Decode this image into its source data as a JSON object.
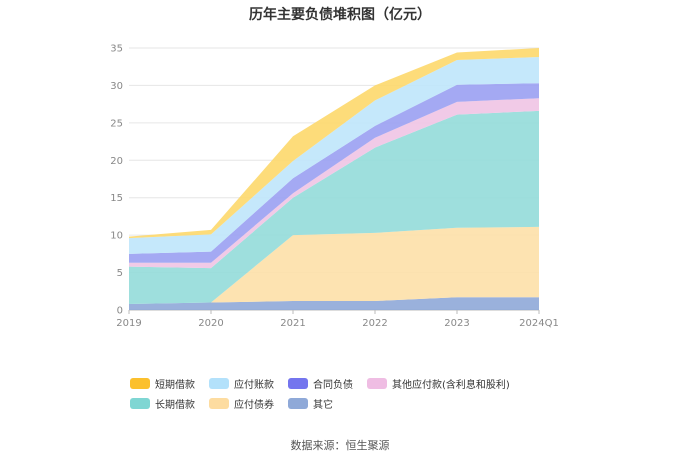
{
  "chart_data": {
    "type": "area",
    "stacked": true,
    "title": "历年主要负债堆积图（亿元）",
    "categories": [
      "2019",
      "2020",
      "2021",
      "2022",
      "2023",
      "2024Q1"
    ],
    "ylim": [
      0,
      35
    ],
    "yticks": [
      0,
      5,
      10,
      15,
      20,
      25,
      30,
      35
    ],
    "grid": true,
    "legend_position": "bottom",
    "series": [
      {
        "name": "其它",
        "color": "#8fa9d8",
        "values": [
          0.8,
          1.0,
          1.2,
          1.2,
          1.7,
          1.7
        ]
      },
      {
        "name": "应付债券",
        "color": "#fde0a8",
        "values": [
          0.0,
          0.0,
          8.8,
          9.1,
          9.3,
          9.4
        ]
      },
      {
        "name": "长期借款",
        "color": "#93dcd9",
        "values": [
          5.0,
          4.6,
          5.0,
          11.4,
          15.1,
          15.5
        ]
      },
      {
        "name": "其他应付款(含利息和股利)",
        "color": "#efc4e4",
        "values": [
          0.5,
          0.7,
          0.6,
          1.3,
          1.7,
          1.7
        ]
      },
      {
        "name": "合同负债",
        "color": "#9aa0f2",
        "values": [
          1.2,
          1.5,
          2.0,
          1.6,
          2.3,
          2.0
        ]
      },
      {
        "name": "应付账款",
        "color": "#bfe5fb",
        "values": [
          2.1,
          2.3,
          2.3,
          3.4,
          3.3,
          3.5
        ]
      },
      {
        "name": "短期借款",
        "color": "#fdd86c",
        "values": [
          0.2,
          0.6,
          3.3,
          2.0,
          1.0,
          1.2
        ]
      }
    ]
  },
  "legend": [
    {
      "label": "短期借款",
      "color": "#fbc02d"
    },
    {
      "label": "应付账款",
      "color": "#b3e1fb"
    },
    {
      "label": "合同负债",
      "color": "#7475ee"
    },
    {
      "label": "其他应付款(含利息和股利)",
      "color": "#efbde3"
    },
    {
      "label": "长期借款",
      "color": "#7fd6d3"
    },
    {
      "label": "应付债券",
      "color": "#fddca0"
    },
    {
      "label": "其它",
      "color": "#8fa9d8"
    }
  ],
  "source": "数据来源：恒生聚源"
}
